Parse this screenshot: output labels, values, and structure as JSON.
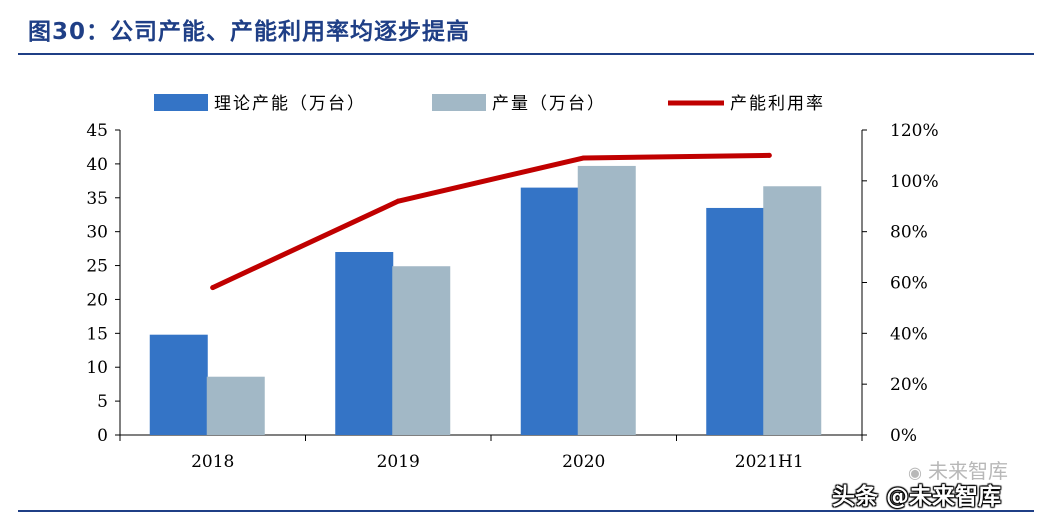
{
  "figure": {
    "title": "图30：公司产能、产能利用率均逐步提高"
  },
  "colors": {
    "capacity": "#3474c6",
    "output": "#a2b8c6",
    "utilization": "#c00000",
    "title": "#1f3f86"
  },
  "chart_data": {
    "type": "bar",
    "categories": [
      "2018",
      "2019",
      "2020",
      "2021H1"
    ],
    "series": [
      {
        "name": "理论产能（万台）",
        "type": "bar",
        "axis": "left",
        "values": [
          14.8,
          27.0,
          36.5,
          33.5
        ]
      },
      {
        "name": "产量（万台）",
        "type": "bar",
        "axis": "left",
        "values": [
          8.6,
          24.9,
          39.7,
          36.7
        ]
      },
      {
        "name": "产能利用率",
        "type": "line",
        "axis": "right",
        "values": [
          0.58,
          0.92,
          1.09,
          1.1
        ]
      }
    ],
    "y_left": {
      "min": 0,
      "max": 45,
      "step": 5,
      "ticks": [
        "0",
        "5",
        "10",
        "15",
        "20",
        "25",
        "30",
        "35",
        "40",
        "45"
      ]
    },
    "y_right": {
      "min": 0,
      "max": 1.2,
      "step": 0.2,
      "ticks": [
        "0%",
        "20%",
        "40%",
        "60%",
        "80%",
        "100%",
        "120%"
      ]
    },
    "legend_position": "top",
    "grid": false
  },
  "watermarks": {
    "line1": "未来智库",
    "line2": "头条 @未来智库"
  }
}
